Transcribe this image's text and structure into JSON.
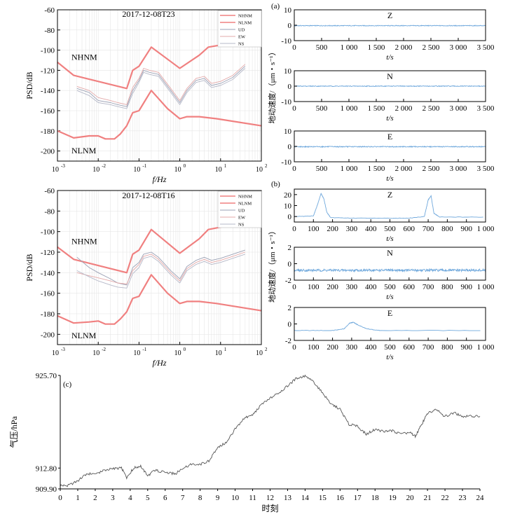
{
  "chart_data": [
    {
      "panel": "a-left",
      "type": "line",
      "title": "2017-12-08T23",
      "xlabel": "f/Hz",
      "ylabel": "PSD/dB",
      "xscale": "log",
      "xlim": [
        0.001,
        100
      ],
      "ylim": [
        -210,
        -60
      ],
      "x_ticks": [
        "10",
        "10",
        "10",
        "10",
        "10",
        "10"
      ],
      "x_tick_exponents": [
        "-3",
        "-2",
        "-1",
        "0",
        "1",
        "2"
      ],
      "y_ticks": [
        "-60",
        "-80",
        "-100",
        "-120",
        "-140",
        "-160",
        "-180",
        "-200"
      ],
      "legend": [
        "NHNM",
        "NLNM",
        "UD",
        "EW",
        "NS"
      ],
      "legend_placement": "top-right",
      "annotations": [
        "NHNM",
        "NLNM"
      ],
      "series": [
        {
          "name": "NHNM",
          "color": "#f08080",
          "width": 2.2,
          "x": [
            0.001,
            0.0025,
            0.05,
            0.07,
            0.1,
            0.2,
            1.0,
            3.0,
            5.0,
            100
          ],
          "y": [
            -112,
            -125,
            -138,
            -120,
            -116,
            -97,
            -118,
            -105,
            -97,
            -88
          ]
        },
        {
          "name": "NLNM",
          "color": "#f08080",
          "width": 2.2,
          "x": [
            0.001,
            0.0025,
            0.006,
            0.01,
            0.015,
            0.025,
            0.035,
            0.05,
            0.07,
            0.1,
            0.2,
            0.5,
            1.0,
            1.5,
            3.0,
            8.0,
            100
          ],
          "y": [
            -180,
            -187,
            -185,
            -185,
            -188,
            -188,
            -183,
            -175,
            -162,
            -160,
            -140,
            -158,
            -168,
            -166,
            -166,
            -168,
            -175
          ]
        },
        {
          "name": "UD",
          "color": "#9aa0b4",
          "width": 0.9,
          "x": [
            0.003,
            0.006,
            0.01,
            0.02,
            0.03,
            0.05,
            0.07,
            0.1,
            0.13,
            0.18,
            0.3,
            0.6,
            1.0,
            1.5,
            2.5,
            4.0,
            6.0,
            10,
            20,
            40
          ],
          "y": [
            -138,
            -142,
            -150,
            -152,
            -154,
            -156,
            -140,
            -130,
            -120,
            -122,
            -124,
            -140,
            -152,
            -140,
            -130,
            -128,
            -135,
            -133,
            -127,
            -116
          ]
        },
        {
          "name": "EW",
          "color": "#e3a8a8",
          "width": 0.9,
          "x": [
            0.003,
            0.006,
            0.01,
            0.02,
            0.03,
            0.05,
            0.07,
            0.1,
            0.13,
            0.18,
            0.3,
            0.6,
            1.0,
            1.5,
            2.5,
            4.0,
            6.0,
            10,
            20,
            40
          ],
          "y": [
            -136,
            -140,
            -147,
            -150,
            -152,
            -154,
            -137,
            -128,
            -118,
            -120,
            -122,
            -138,
            -150,
            -138,
            -128,
            -126,
            -133,
            -131,
            -125,
            -114
          ]
        },
        {
          "name": "NS",
          "color": "#b5b8c8",
          "width": 0.9,
          "x": [
            0.003,
            0.006,
            0.01,
            0.02,
            0.03,
            0.05,
            0.07,
            0.1,
            0.13,
            0.18,
            0.3,
            0.6,
            1.0,
            1.5,
            2.5,
            4.0,
            6.0,
            10,
            20,
            40
          ],
          "y": [
            -140,
            -145,
            -152,
            -154,
            -156,
            -158,
            -143,
            -132,
            -122,
            -124,
            -126,
            -142,
            -154,
            -142,
            -132,
            -130,
            -137,
            -135,
            -129,
            -118
          ]
        }
      ]
    },
    {
      "panel": "b-left",
      "type": "line",
      "title": "2017-12-08T16",
      "xlabel": "f/Hz",
      "ylabel": "PSD/dB",
      "xscale": "log",
      "xlim": [
        0.001,
        100
      ],
      "ylim": [
        -210,
        -60
      ],
      "x_ticks": [
        "10",
        "10",
        "10",
        "10",
        "10",
        "10"
      ],
      "x_tick_exponents": [
        "-3",
        "-2",
        "-1",
        "0",
        "1",
        "2"
      ],
      "y_ticks": [
        "-60",
        "-80",
        "-100",
        "-120",
        "-140",
        "-160",
        "-180",
        "-200"
      ],
      "legend": [
        "NHNM",
        "NLNM",
        "UD",
        "EW",
        "NS"
      ],
      "legend_placement": "top-right",
      "annotations": [
        "NHNM",
        "NLNM"
      ],
      "series": [
        {
          "name": "NHNM",
          "color": "#f08080",
          "width": 2.2,
          "x": [
            0.001,
            0.0025,
            0.05,
            0.07,
            0.1,
            0.2,
            1.0,
            3.0,
            5.0,
            100
          ],
          "y": [
            -115,
            -127,
            -140,
            -122,
            -118,
            -98,
            -121,
            -107,
            -98,
            -88
          ]
        },
        {
          "name": "NLNM",
          "color": "#f08080",
          "width": 2.2,
          "x": [
            0.001,
            0.0025,
            0.006,
            0.01,
            0.015,
            0.025,
            0.035,
            0.05,
            0.07,
            0.1,
            0.2,
            0.5,
            1.0,
            1.5,
            3.0,
            8.0,
            100
          ],
          "y": [
            -182,
            -189,
            -188,
            -187,
            -190,
            -190,
            -185,
            -178,
            -165,
            -163,
            -142,
            -160,
            -170,
            -168,
            -168,
            -170,
            -177
          ]
        },
        {
          "name": "UD",
          "color": "#9aa0b4",
          "width": 0.9,
          "x": [
            0.003,
            0.006,
            0.01,
            0.02,
            0.03,
            0.05,
            0.07,
            0.1,
            0.13,
            0.2,
            0.3,
            0.6,
            1.0,
            1.5,
            2.5,
            4.0,
            6.0,
            10,
            20,
            40
          ],
          "y": [
            -125,
            -135,
            -140,
            -146,
            -150,
            -152,
            -135,
            -130,
            -122,
            -120,
            -125,
            -138,
            -146,
            -134,
            -128,
            -125,
            -128,
            -126,
            -122,
            -118
          ]
        },
        {
          "name": "EW",
          "color": "#e3a8a8",
          "width": 0.9,
          "x": [
            0.003,
            0.006,
            0.01,
            0.02,
            0.03,
            0.05,
            0.07,
            0.1,
            0.13,
            0.2,
            0.3,
            0.6,
            1.0,
            1.5,
            2.5,
            4.0,
            6.0,
            10,
            20,
            40
          ],
          "y": [
            -140,
            -143,
            -145,
            -148,
            -150,
            -151,
            -138,
            -132,
            -124,
            -122,
            -127,
            -140,
            -148,
            -136,
            -130,
            -127,
            -130,
            -128,
            -124,
            -120
          ]
        },
        {
          "name": "NS",
          "color": "#b5b8c8",
          "width": 0.9,
          "x": [
            0.003,
            0.006,
            0.01,
            0.02,
            0.03,
            0.05,
            0.07,
            0.1,
            0.13,
            0.2,
            0.3,
            0.6,
            1.0,
            1.5,
            2.5,
            4.0,
            6.0,
            10,
            20,
            40
          ],
          "y": [
            -138,
            -144,
            -148,
            -152,
            -154,
            -155,
            -141,
            -135,
            -126,
            -124,
            -129,
            -142,
            -150,
            -138,
            -132,
            -129,
            -132,
            -130,
            -126,
            -122
          ]
        }
      ]
    },
    {
      "panel": "a-right",
      "type": "line",
      "label": "(a)",
      "ylabel": "地动速度/（μm・s⁻¹）",
      "xlabel": "t/s",
      "color": "#6fa8dc",
      "xlim": [
        0,
        3500
      ],
      "x_ticks": [
        "0",
        "500",
        "1 000",
        "1 500",
        "2 000",
        "2 500",
        "3 000",
        "3 500"
      ],
      "subplots": [
        {
          "name": "Z",
          "ylim": [
            -10,
            10
          ],
          "y_ticks": [
            "10",
            "0",
            "-10"
          ],
          "level": -0.3,
          "noise": 0.25
        },
        {
          "name": "N",
          "ylim": [
            -10,
            10
          ],
          "y_ticks": [
            "10",
            "0",
            "-10"
          ],
          "level": 0.0,
          "noise": 0.25
        },
        {
          "name": "E",
          "ylim": [
            -10,
            10
          ],
          "y_ticks": [
            "10",
            "0",
            "-10"
          ],
          "level": -0.2,
          "noise": 0.3
        }
      ]
    },
    {
      "panel": "b-right",
      "type": "line",
      "label": "(b)",
      "ylabel": "地动速度/（μm・s⁻¹）",
      "xlabel": "t/s",
      "color": "#6fa8dc",
      "xlim": [
        0,
        1000
      ],
      "x_ticks": [
        "0",
        "100",
        "200",
        "300",
        "400",
        "500",
        "600",
        "700",
        "800",
        "900",
        "1 000"
      ],
      "subplots": [
        {
          "name": "Z",
          "ylim": [
            -5,
            25
          ],
          "y_ticks": [
            "20",
            "10",
            "0"
          ],
          "x": [
            0,
            100,
            120,
            140,
            155,
            170,
            190,
            300,
            500,
            600,
            680,
            700,
            715,
            730,
            760,
            1000
          ],
          "y": [
            0,
            0.5,
            10,
            21,
            16,
            4,
            -1,
            -1.5,
            -1.5,
            -1.5,
            0,
            15,
            19,
            3,
            -0.5,
            -0.5
          ]
        },
        {
          "name": "N",
          "ylim": [
            -2,
            2
          ],
          "y_ticks": [
            "2",
            "0",
            "-2"
          ],
          "level": -0.8,
          "noise": 0.15
        },
        {
          "name": "E",
          "ylim": [
            -2,
            2
          ],
          "y_ticks": [
            "2",
            "0",
            "-2"
          ],
          "x": [
            0,
            200,
            260,
            290,
            310,
            330,
            380,
            450,
            1000
          ],
          "y": [
            -0.8,
            -0.8,
            -0.6,
            0.1,
            0.2,
            -0.1,
            -0.6,
            -0.8,
            -0.8
          ]
        }
      ]
    },
    {
      "panel": "c",
      "type": "line",
      "label": "(c)",
      "xlabel": "时刻",
      "ylabel": "气压/hPa",
      "color": "#555555",
      "xlim": [
        0,
        24
      ],
      "ylim": [
        909.9,
        925.7
      ],
      "y_ticks": [
        "925.70",
        "912.80",
        "909.90"
      ],
      "y_tick_values": [
        925.7,
        912.8,
        909.9
      ],
      "x_ticks": [
        "0",
        "1",
        "2",
        "3",
        "4",
        "5",
        "6",
        "7",
        "8",
        "9",
        "10",
        "11",
        "12",
        "13",
        "14",
        "15",
        "16",
        "17",
        "18",
        "19",
        "20",
        "21",
        "22",
        "23",
        "24"
      ],
      "x": [
        0,
        0.4,
        1,
        1.5,
        2,
        2.5,
        3,
        3.5,
        3.8,
        4.2,
        4.6,
        5,
        5.4,
        5.8,
        6.2,
        6.6,
        7,
        7.5,
        8,
        8.5,
        9,
        9.5,
        10,
        10.5,
        11,
        11.5,
        12,
        12.5,
        13,
        13.5,
        14,
        14.5,
        15,
        15.5,
        16,
        16.5,
        17,
        17.5,
        18,
        18.5,
        19,
        19.5,
        20,
        20.3,
        20.7,
        21,
        21.5,
        22,
        22.5,
        23,
        23.5,
        24
      ],
      "y": [
        910.4,
        910.3,
        911.0,
        912.0,
        912.0,
        912.5,
        912.7,
        912.8,
        911.5,
        912.8,
        913.1,
        911.7,
        912.5,
        912.3,
        912.1,
        912.0,
        912.8,
        913.3,
        913.3,
        913.8,
        915.6,
        916.4,
        918.2,
        919.7,
        920.2,
        921.6,
        922.5,
        923.3,
        924.2,
        925.3,
        925.6,
        924.8,
        923.2,
        921.7,
        921.0,
        918.9,
        918.6,
        917.5,
        918.2,
        917.9,
        918.0,
        917.5,
        917.8,
        917.2,
        919.0,
        920.4,
        921.0,
        920.0,
        920.5,
        920.0,
        920.0,
        920.0
      ]
    }
  ]
}
